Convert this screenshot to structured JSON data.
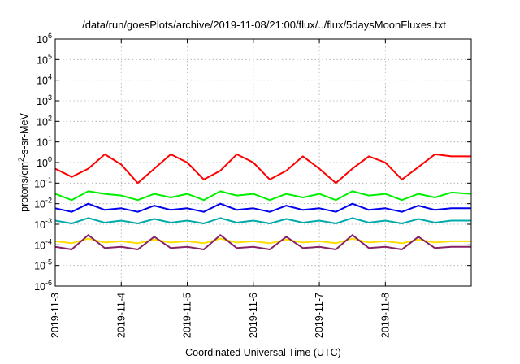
{
  "chart_data": {
    "type": "line",
    "title": "/data/run/goesPlots/archive/2019-11-08/21:00/flux/../flux/5daysMoonFluxes.txt",
    "xlabel": "Coordinated Universal Time (UTC)",
    "ylabel": {
      "base": "protons/cm",
      "sup": "2",
      "rest": "-s-sr-MeV"
    },
    "yscale": "log",
    "ylim": [
      1e-06,
      1000000.0
    ],
    "xlim": [
      0,
      6.3
    ],
    "grid": true,
    "x_tick_labels": [
      "2019-11-3",
      "2019-11-4",
      "2019-11-5",
      "2019-11-6",
      "2019-11-7",
      "2019-11-8"
    ],
    "x_tick_values": [
      0,
      1,
      2,
      3,
      4,
      5
    ],
    "y_tick_labels": [
      {
        "base": "10",
        "exp": "6"
      },
      {
        "base": "10",
        "exp": "5"
      },
      {
        "base": "10",
        "exp": "4"
      },
      {
        "base": "10",
        "exp": "3"
      },
      {
        "base": "10",
        "exp": "2"
      },
      {
        "base": "10",
        "exp": "1"
      },
      {
        "base": "10",
        "exp": "0"
      },
      {
        "base": "10",
        "exp": "-1"
      },
      {
        "base": "10",
        "exp": "-2"
      },
      {
        "base": "10",
        "exp": "-3"
      },
      {
        "base": "10",
        "exp": "-4"
      },
      {
        "base": "10",
        "exp": "-5"
      },
      {
        "base": "10",
        "exp": "-6"
      }
    ],
    "y_tick_values": [
      1000000.0,
      100000.0,
      10000.0,
      1000.0,
      100.0,
      10.0,
      1,
      0.1,
      0.01,
      0.001,
      0.0001,
      1e-05,
      1e-06
    ],
    "series": [
      {
        "color": "#ff0000",
        "x": [
          0,
          0.25,
          0.5,
          0.75,
          1.0,
          1.25,
          1.5,
          1.75,
          2.0,
          2.25,
          2.5,
          2.75,
          3.0,
          3.25,
          3.5,
          3.75,
          4.0,
          4.25,
          4.5,
          4.75,
          5.0,
          5.25,
          5.5,
          5.75,
          6.0,
          6.3
        ],
        "values": [
          0.5,
          0.2,
          0.5,
          2.5,
          0.8,
          0.1,
          0.5,
          2.5,
          1.0,
          0.15,
          0.4,
          2.5,
          1.0,
          0.15,
          0.4,
          2.0,
          0.5,
          0.1,
          0.5,
          2.0,
          1.0,
          0.15,
          0.6,
          2.5,
          2.0,
          2.0
        ]
      },
      {
        "color": "#00ee00",
        "x": [
          0,
          0.25,
          0.5,
          0.75,
          1.0,
          1.25,
          1.5,
          1.75,
          2.0,
          2.25,
          2.5,
          2.75,
          3.0,
          3.25,
          3.5,
          3.75,
          4.0,
          4.25,
          4.5,
          4.75,
          5.0,
          5.25,
          5.5,
          5.75,
          6.0,
          6.3
        ],
        "values": [
          0.03,
          0.015,
          0.04,
          0.03,
          0.025,
          0.015,
          0.03,
          0.02,
          0.03,
          0.015,
          0.04,
          0.025,
          0.03,
          0.015,
          0.03,
          0.02,
          0.03,
          0.015,
          0.04,
          0.025,
          0.03,
          0.015,
          0.03,
          0.02,
          0.035,
          0.03
        ]
      },
      {
        "color": "#0000ee",
        "x": [
          0,
          0.25,
          0.5,
          0.75,
          1.0,
          1.25,
          1.5,
          1.75,
          2.0,
          2.25,
          2.5,
          2.75,
          3.0,
          3.25,
          3.5,
          3.75,
          4.0,
          4.25,
          4.5,
          4.75,
          5.0,
          5.25,
          5.5,
          5.75,
          6.0,
          6.3
        ],
        "values": [
          0.006,
          0.004,
          0.01,
          0.005,
          0.006,
          0.004,
          0.008,
          0.005,
          0.006,
          0.004,
          0.01,
          0.005,
          0.006,
          0.004,
          0.008,
          0.005,
          0.006,
          0.004,
          0.01,
          0.005,
          0.006,
          0.004,
          0.008,
          0.005,
          0.006,
          0.006
        ]
      },
      {
        "color": "#00aaaa",
        "x": [
          0,
          0.25,
          0.5,
          0.75,
          1.0,
          1.25,
          1.5,
          1.75,
          2.0,
          2.25,
          2.5,
          2.75,
          3.0,
          3.25,
          3.5,
          3.75,
          4.0,
          4.25,
          4.5,
          4.75,
          5.0,
          5.25,
          5.5,
          5.75,
          6.0,
          6.3
        ],
        "values": [
          0.0015,
          0.0011,
          0.002,
          0.0012,
          0.0015,
          0.0011,
          0.0018,
          0.0012,
          0.0015,
          0.0011,
          0.002,
          0.0012,
          0.0015,
          0.0011,
          0.0018,
          0.0012,
          0.0015,
          0.0011,
          0.002,
          0.0012,
          0.0015,
          0.0011,
          0.0018,
          0.0012,
          0.0015,
          0.0015
        ]
      },
      {
        "color": "#ffdd00",
        "x": [
          0,
          0.25,
          0.5,
          0.75,
          1.0,
          1.25,
          1.5,
          1.75,
          2.0,
          2.25,
          2.5,
          2.75,
          3.0,
          3.25,
          3.5,
          3.75,
          4.0,
          4.25,
          4.5,
          4.75,
          5.0,
          5.25,
          5.5,
          5.75,
          6.0,
          6.3
        ],
        "values": [
          0.00015,
          0.00012,
          0.0002,
          0.00013,
          0.00015,
          0.00012,
          0.00018,
          0.00013,
          0.00015,
          0.00012,
          0.0002,
          0.00013,
          0.00015,
          0.00012,
          0.00018,
          0.00013,
          0.00015,
          0.00012,
          0.0002,
          0.00013,
          0.00015,
          0.00012,
          0.00018,
          0.00013,
          0.00015,
          0.00015
        ]
      },
      {
        "color": "#882266",
        "x": [
          0,
          0.25,
          0.5,
          0.75,
          1.0,
          1.25,
          1.5,
          1.75,
          2.0,
          2.25,
          2.5,
          2.75,
          3.0,
          3.25,
          3.5,
          3.75,
          4.0,
          4.25,
          4.5,
          4.75,
          5.0,
          5.25,
          5.5,
          5.75,
          6.0,
          6.3
        ],
        "values": [
          8e-05,
          6e-05,
          0.0003,
          7e-05,
          8e-05,
          6e-05,
          0.00025,
          7e-05,
          8e-05,
          6e-05,
          0.0003,
          7e-05,
          8e-05,
          6e-05,
          0.00025,
          7e-05,
          8e-05,
          6e-05,
          0.0003,
          7e-05,
          8e-05,
          6e-05,
          0.00025,
          7e-05,
          8e-05,
          8e-05
        ]
      }
    ]
  }
}
